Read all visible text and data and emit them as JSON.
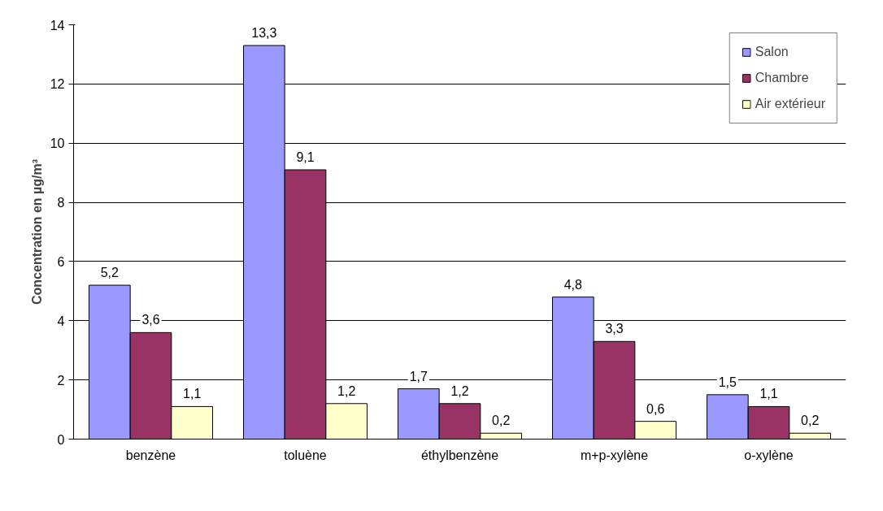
{
  "chart_data": {
    "type": "bar",
    "ylabel": "Concentration en µg/m³",
    "categories": [
      "benzène",
      "toluène",
      "éthylbenzène",
      "m+p-xylène",
      "o-xylène"
    ],
    "series": [
      {
        "name": "Salon",
        "color": "#9999ff",
        "values": [
          5.2,
          13.3,
          1.7,
          4.8,
          1.5
        ],
        "value_labels": [
          "5,2",
          "13,3",
          "1,7",
          "4,8",
          "1,5"
        ]
      },
      {
        "name": "Chambre",
        "color": "#993366",
        "values": [
          3.6,
          9.1,
          1.2,
          3.3,
          1.1
        ],
        "value_labels": [
          "3,6",
          "9,1",
          "1,2",
          "3,3",
          "1,1"
        ]
      },
      {
        "name": "Air extérieur",
        "color": "#ffffcc",
        "values": [
          1.1,
          1.2,
          0.2,
          0.6,
          0.2
        ],
        "value_labels": [
          "1,1",
          "1,2",
          "0,2",
          "0,6",
          "0,2"
        ]
      }
    ],
    "ylim": [
      0,
      14
    ],
    "yticks": [
      0,
      2,
      4,
      6,
      8,
      10,
      12,
      14
    ],
    "grid": "y",
    "legend": "top right"
  }
}
